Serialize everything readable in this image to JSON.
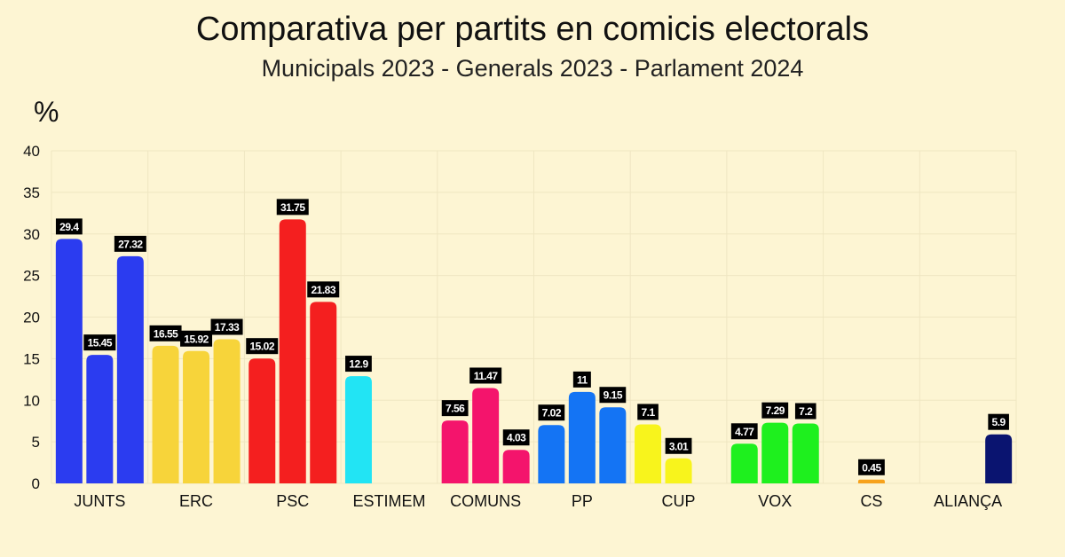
{
  "header": {
    "title": "Comparativa per partits en comicis electorals",
    "subtitle": "Municipals 2023 - Generals 2023 - Parlament 2024"
  },
  "chart_data": {
    "type": "bar",
    "ylabel": "%",
    "ylim": [
      0,
      40
    ],
    "yticks": [
      0,
      5,
      10,
      15,
      20,
      25,
      30,
      35,
      40
    ],
    "grid": true,
    "categories": [
      "JUNTS",
      "ERC",
      "PSC",
      "ESTIMEM",
      "COMUNS",
      "PP",
      "CUP",
      "VOX",
      "CS",
      "ALIANÇA"
    ],
    "groups": [
      {
        "category": "JUNTS",
        "color": "#2b3cf0",
        "values": [
          29.4,
          15.45,
          27.32
        ],
        "labels": [
          "29.4",
          "15.45",
          "27.32"
        ]
      },
      {
        "category": "ERC",
        "color": "#f7d43a",
        "values": [
          16.55,
          15.92,
          17.33
        ],
        "labels": [
          "16.55",
          "15.92",
          "17.33"
        ]
      },
      {
        "category": "PSC",
        "color": "#f41f1f",
        "values": [
          15.02,
          31.75,
          21.83
        ],
        "labels": [
          "15.02",
          "31.75",
          "21.83"
        ]
      },
      {
        "category": "ESTIMEM",
        "color": "#22e4f4",
        "values": [
          12.9,
          null,
          null
        ],
        "labels": [
          "12.9",
          "",
          ""
        ]
      },
      {
        "category": "COMUNS",
        "color": "#f4146c",
        "values": [
          7.56,
          11.47,
          4.03
        ],
        "labels": [
          "7.56",
          "11.47",
          "4.03"
        ]
      },
      {
        "category": "PP",
        "color": "#1474f4",
        "values": [
          7.02,
          11,
          9.15
        ],
        "labels": [
          "7.02",
          "11",
          "9.15"
        ]
      },
      {
        "category": "CUP",
        "color": "#f8f41c",
        "values": [
          7.1,
          3.01,
          null
        ],
        "labels": [
          "7.1",
          "3.01",
          ""
        ]
      },
      {
        "category": "VOX",
        "color": "#1ef01e",
        "values": [
          4.77,
          7.29,
          7.2
        ],
        "labels": [
          "4.77",
          "7.29",
          "7.2"
        ]
      },
      {
        "category": "CS",
        "color": "#f7a21c",
        "values": [
          null,
          0.45,
          null
        ],
        "labels": [
          "",
          "0.45",
          ""
        ]
      },
      {
        "category": "ALIANÇA",
        "color": "#0a1470",
        "values": [
          null,
          null,
          5.9
        ],
        "labels": [
          "",
          "",
          "5.9"
        ]
      }
    ]
  }
}
